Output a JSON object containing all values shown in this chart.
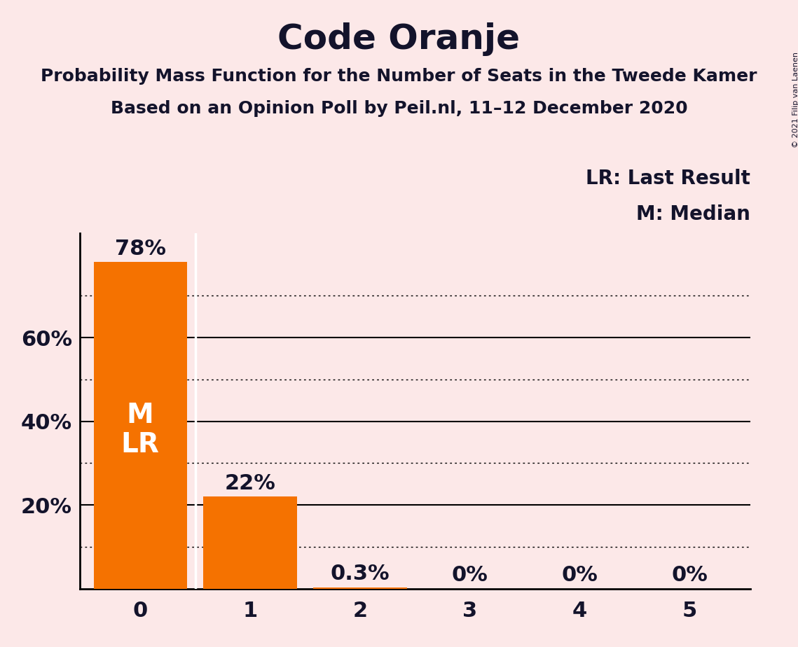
{
  "title": "Code Oranje",
  "subtitle1": "Probability Mass Function for the Number of Seats in the Tweede Kamer",
  "subtitle2": "Based on an Opinion Poll by Peil.nl, 11–12 December 2020",
  "copyright": "© 2021 Filip van Laenen",
  "categories": [
    0,
    1,
    2,
    3,
    4,
    5
  ],
  "values": [
    0.78,
    0.22,
    0.003,
    0.0,
    0.0,
    0.0
  ],
  "value_labels": [
    "78%",
    "22%",
    "0.3%",
    "0%",
    "0%",
    "0%"
  ],
  "bar_color": "#f57200",
  "background_color": "#fce8e8",
  "text_color": "#13132b",
  "bar_label_color_inside": "#ffffff",
  "bar_label_color_outside": "#13132b",
  "median_label": "M",
  "lr_label": "LR",
  "legend_lr": "LR: Last Result",
  "legend_m": "M: Median",
  "yticks_solid": [
    0.2,
    0.4,
    0.6
  ],
  "yticks_dotted": [
    0.1,
    0.3,
    0.5,
    0.7
  ],
  "ylim": [
    0,
    0.85
  ],
  "title_fontsize": 36,
  "subtitle_fontsize": 18,
  "tick_fontsize": 22,
  "bar_label_fontsize": 22,
  "inside_label_fontsize": 28,
  "legend_fontsize": 20,
  "copyright_fontsize": 8
}
